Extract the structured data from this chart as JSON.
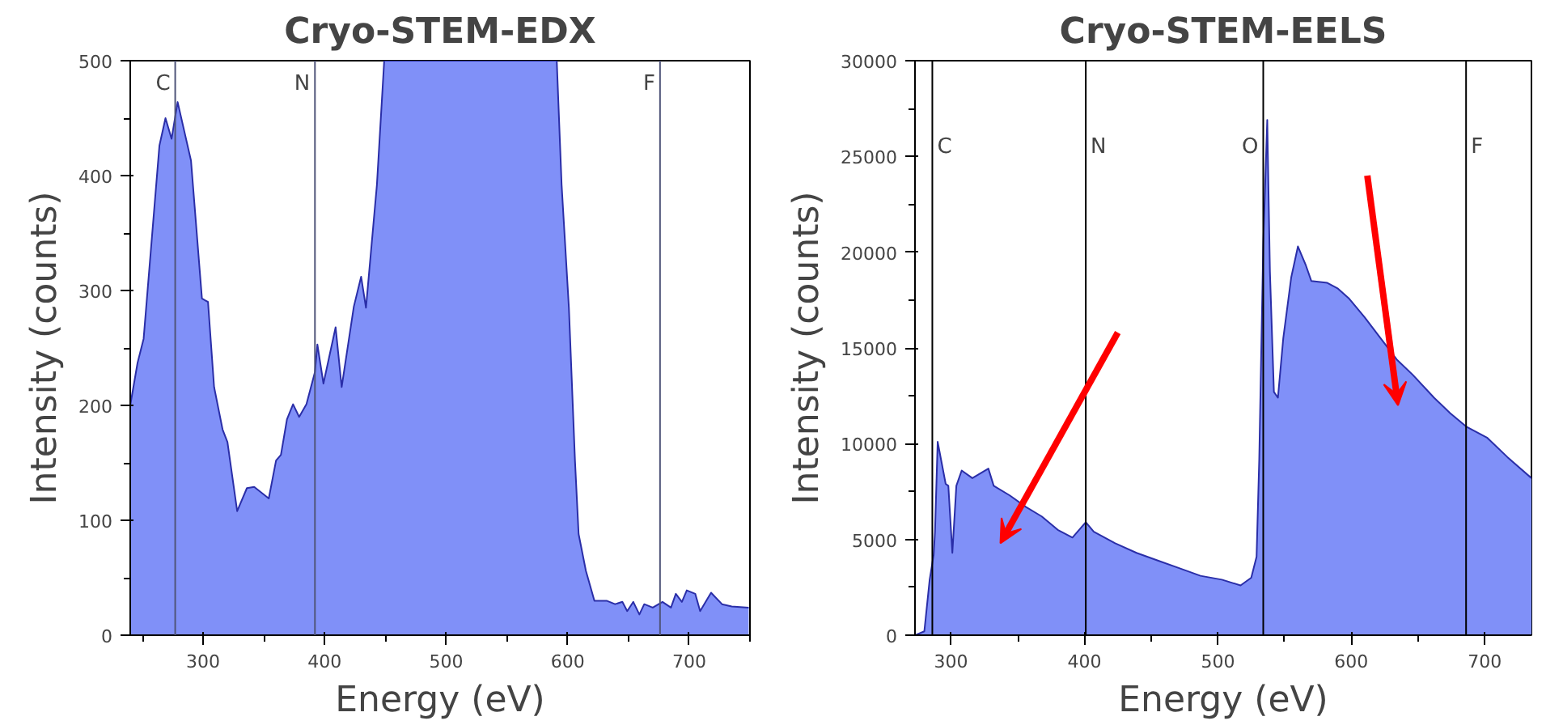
{
  "chart_data": [
    {
      "type": "area",
      "title": "Cryo-STEM-EDX",
      "xlabel": "Energy (eV)",
      "ylabel": "Intensity (counts)",
      "xlim": [
        240,
        750
      ],
      "xticks": [
        300,
        400,
        500,
        600,
        700
      ],
      "ylim": [
        0,
        500
      ],
      "yticks": [
        0,
        100,
        200,
        300,
        400,
        500
      ],
      "series": [
        {
          "color": "#8090f8",
          "x": [
            240,
            246,
            251,
            264,
            269,
            274,
            279,
            290,
            299,
            304,
            309,
            316,
            320,
            328,
            336,
            342,
            354,
            360,
            364,
            369,
            374,
            379,
            385,
            392,
            394,
            399,
            409,
            414,
            424,
            430,
            434,
            443,
            449,
            591,
            595,
            601,
            606,
            609,
            615,
            622,
            632,
            639,
            645,
            649,
            654,
            659,
            663,
            670,
            678,
            685,
            689,
            694,
            698,
            705,
            709,
            718,
            727,
            735,
            749
          ],
          "values": [
            200,
            237,
            258,
            426,
            450,
            432,
            464,
            413,
            293,
            290,
            216,
            179,
            168,
            108,
            128,
            129,
            119,
            152,
            157,
            188,
            201,
            190,
            201,
            229,
            253,
            219,
            268,
            216,
            286,
            312,
            285,
            392,
            500,
            500,
            392,
            285,
            152,
            88,
            56,
            30,
            30,
            27,
            29,
            21,
            29,
            18,
            27,
            24,
            29,
            24,
            36,
            29,
            39,
            36,
            21,
            37,
            27,
            25,
            24
          ]
        }
      ],
      "ref_lines": [
        {
          "axis": "x",
          "value": 277,
          "label": "C",
          "color": "#50557a"
        },
        {
          "axis": "x",
          "value": 392,
          "label": "N",
          "color": "#50557a"
        },
        {
          "axis": "x",
          "value": 676,
          "label": "F",
          "color": "#50557a"
        }
      ]
    },
    {
      "type": "area",
      "title": "Cryo-STEM-EELS",
      "xlabel": "Energy (eV)",
      "ylabel": "Intensity (counts)",
      "xlim": [
        273,
        735
      ],
      "xticks": [
        300,
        400,
        500,
        600,
        700
      ],
      "ylim": [
        0,
        30000
      ],
      "yticks": [
        0,
        5000,
        10000,
        15000,
        20000,
        25000,
        30000
      ],
      "series": [
        {
          "color": "#8090f8",
          "x": [
            273,
            280,
            284,
            287,
            288,
            290,
            293,
            296,
            298,
            301,
            304,
            308,
            316,
            328,
            332,
            344,
            356,
            368,
            380,
            391,
            401,
            407,
            423,
            439,
            455,
            471,
            487,
            503,
            517,
            525,
            529,
            531,
            534,
            537,
            539,
            542,
            545,
            549,
            555,
            560,
            566,
            570,
            582,
            590,
            598,
            610,
            622,
            634,
            646,
            662,
            674,
            686,
            702,
            717,
            735
          ],
          "values": [
            0,
            200,
            2900,
            4200,
            5400,
            10100,
            9000,
            7900,
            7800,
            4300,
            7800,
            8600,
            8200,
            8700,
            7800,
            7300,
            6700,
            6200,
            5500,
            5100,
            5900,
            5400,
            4800,
            4300,
            3900,
            3500,
            3100,
            2900,
            2600,
            3000,
            4100,
            9200,
            20400,
            26900,
            19000,
            12700,
            12400,
            15500,
            18700,
            20300,
            19300,
            18500,
            18400,
            18100,
            17600,
            16600,
            15500,
            14400,
            13600,
            12400,
            11600,
            10900,
            10300,
            9300,
            8200
          ]
        }
      ],
      "ref_lines": [
        {
          "axis": "x",
          "value": 286,
          "label": "C",
          "color": "#000000"
        },
        {
          "axis": "x",
          "value": 401,
          "label": "N",
          "color": "#000000"
        },
        {
          "axis": "x",
          "value": 534,
          "label": "O",
          "color": "#000000"
        },
        {
          "axis": "x",
          "value": 686,
          "label": "F",
          "color": "#000000"
        }
      ]
    }
  ]
}
